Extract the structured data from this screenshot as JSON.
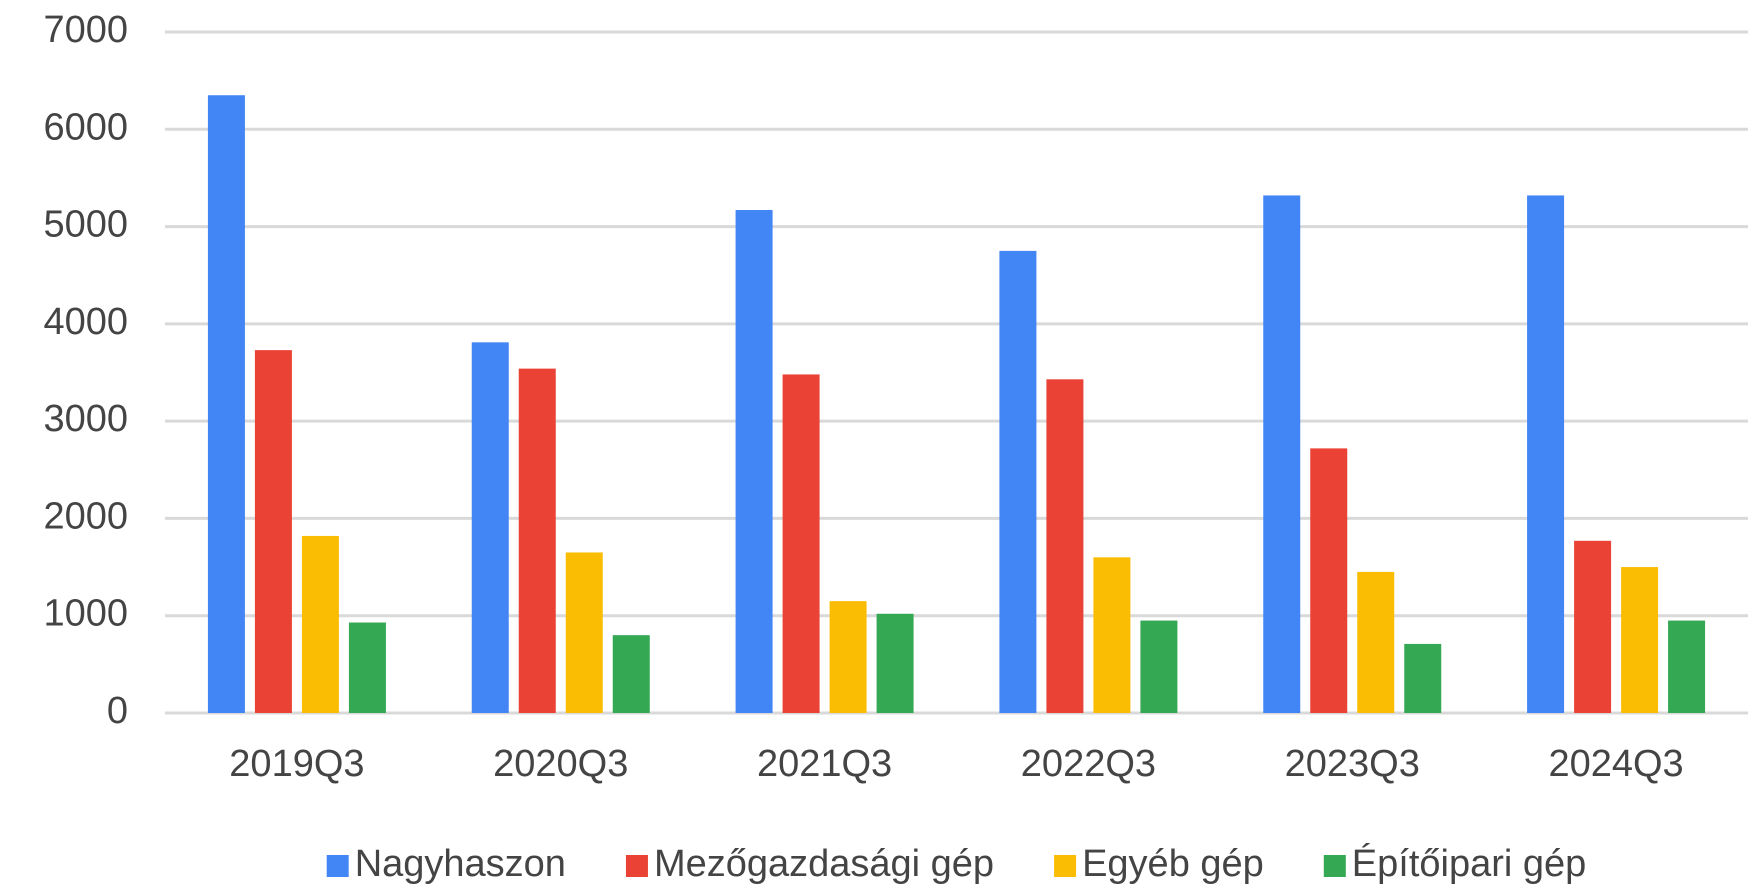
{
  "chart_data": {
    "type": "bar",
    "categories": [
      "2019Q3",
      "2020Q3",
      "2021Q3",
      "2022Q3",
      "2023Q3",
      "2024Q3"
    ],
    "series": [
      {
        "name": "Nagyhaszon",
        "color": "#4285f4",
        "values": [
          6350,
          3810,
          5170,
          4750,
          5320,
          5320
        ]
      },
      {
        "name": "Mezőgazdasági gép",
        "color": "#ea4335",
        "values": [
          3730,
          3540,
          3480,
          3430,
          2720,
          1770
        ]
      },
      {
        "name": "Egyéb gép",
        "color": "#fbbc04",
        "values": [
          1820,
          1650,
          1150,
          1600,
          1450,
          1500
        ]
      },
      {
        "name": "Építőipari gép",
        "color": "#34a853",
        "values": [
          930,
          800,
          1020,
          950,
          710,
          950
        ]
      }
    ],
    "ylim": [
      0,
      7000
    ],
    "yticks": [
      0,
      1000,
      2000,
      3000,
      4000,
      5000,
      6000,
      7000
    ],
    "grid": true,
    "legend": "bottom"
  }
}
